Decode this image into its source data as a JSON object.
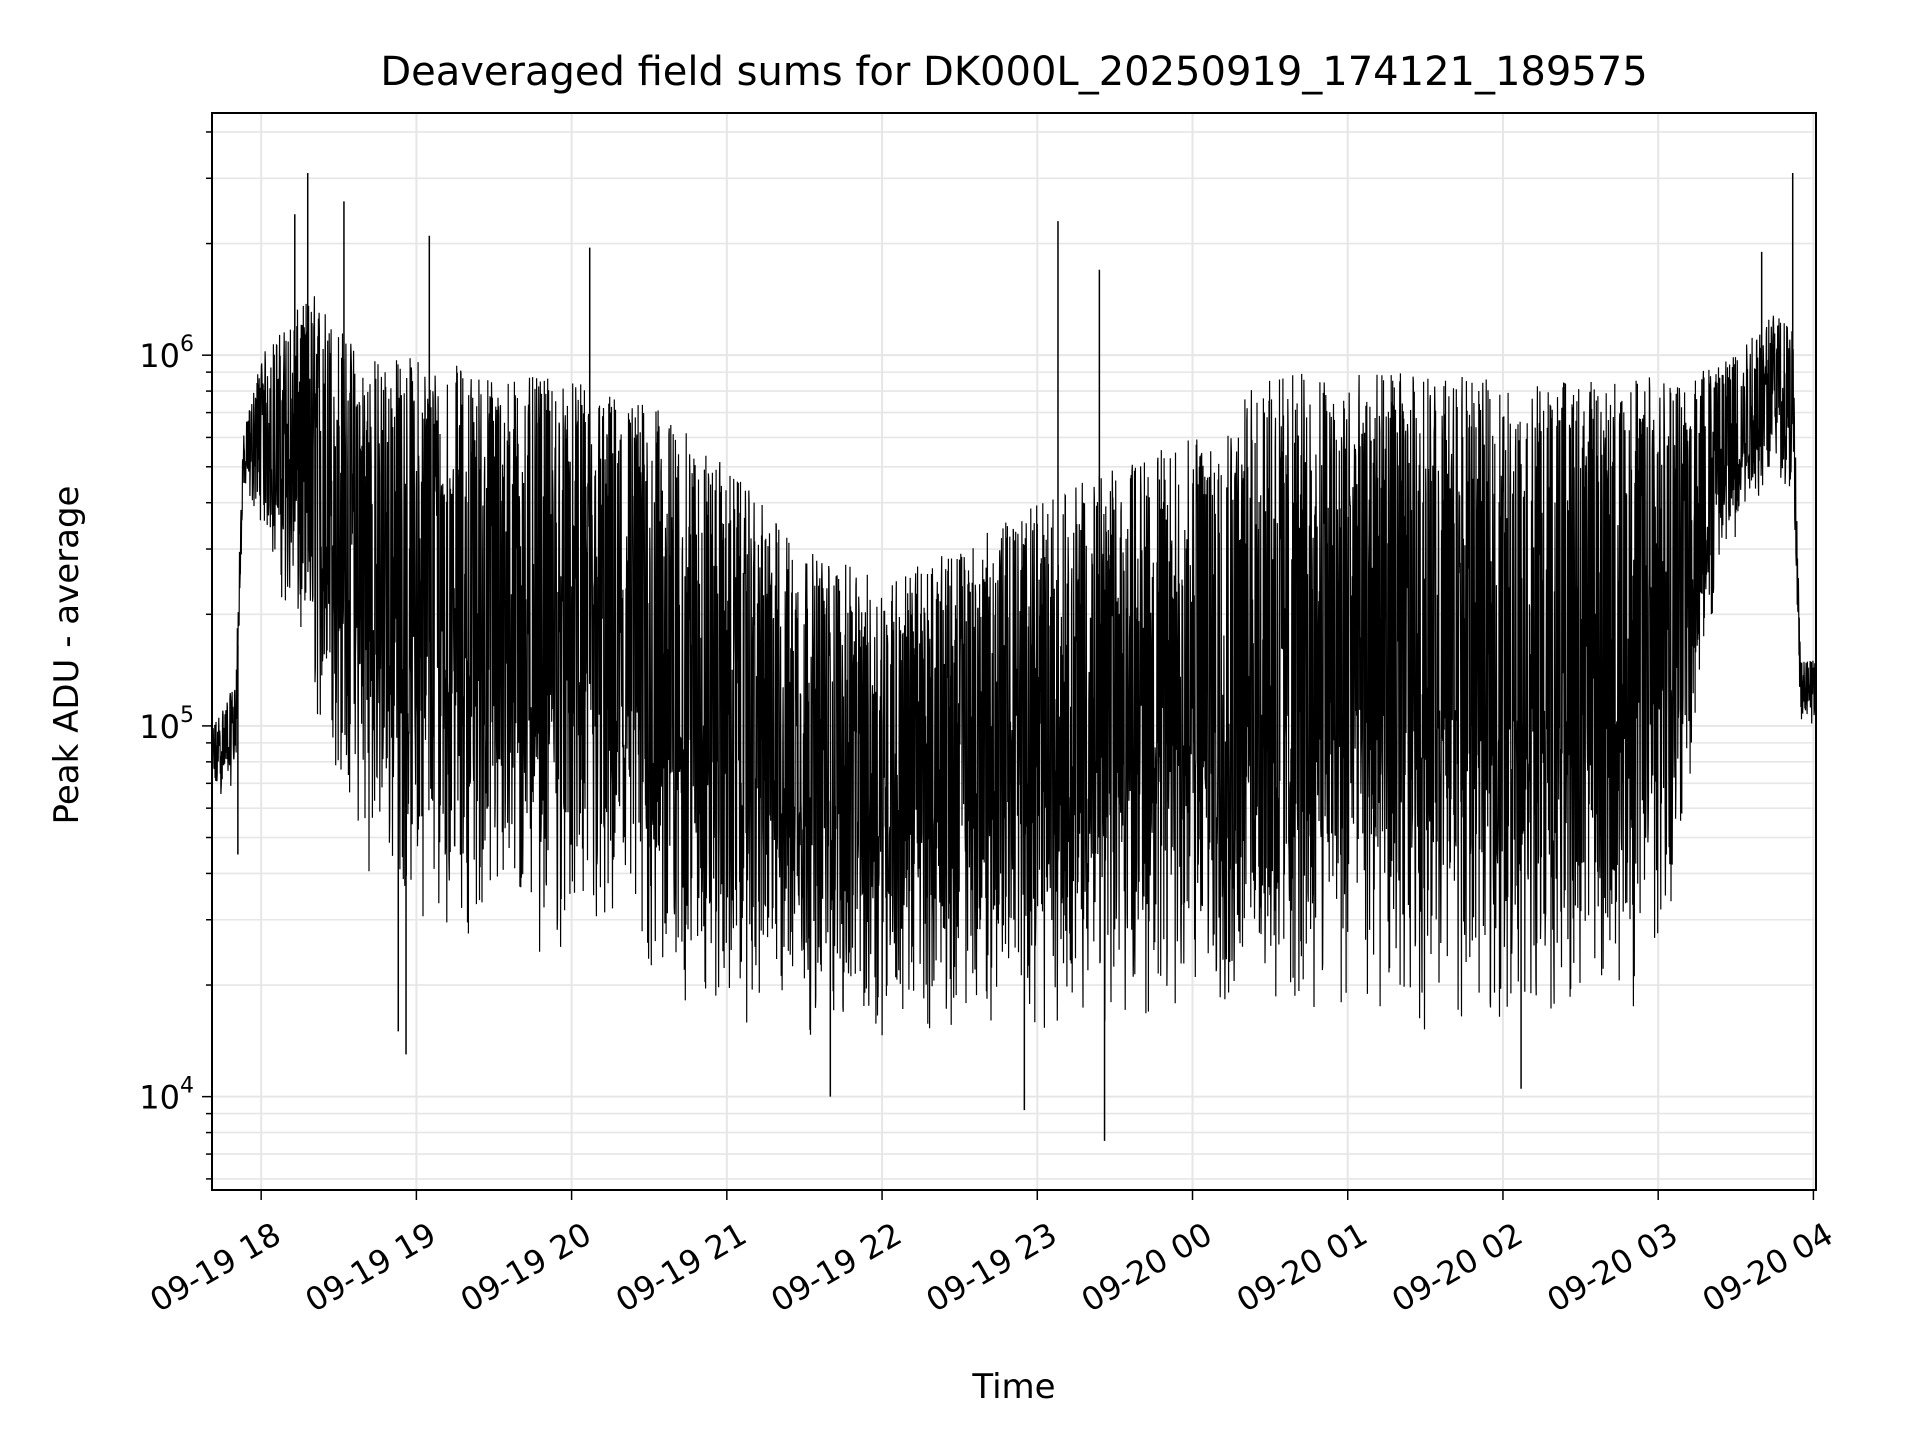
{
  "chart_data": {
    "type": "line",
    "title": "Deaveraged field sums for DK000L_20250919_174121_189575",
    "xlabel": "Time",
    "ylabel": "Peak ADU - average",
    "yscale": "log",
    "ylim": [
      5600,
      4500000
    ],
    "xlim": [
      "2025-09-19 17:41",
      "2025-09-20 04:01"
    ],
    "grid": true,
    "line_color": "#000000",
    "grid_color": "#e6e6e6",
    "x_ticks": [
      {
        "label": "09-19 18",
        "t": "2025-09-19 18:00"
      },
      {
        "label": "09-19 19",
        "t": "2025-09-19 19:00"
      },
      {
        "label": "09-19 20",
        "t": "2025-09-19 20:00"
      },
      {
        "label": "09-19 21",
        "t": "2025-09-19 21:00"
      },
      {
        "label": "09-19 22",
        "t": "2025-09-19 22:00"
      },
      {
        "label": "09-19 23",
        "t": "2025-09-19 23:00"
      },
      {
        "label": "09-20 00",
        "t": "2025-09-20 00:00"
      },
      {
        "label": "09-20 01",
        "t": "2025-09-20 01:00"
      },
      {
        "label": "09-20 02",
        "t": "2025-09-20 02:00"
      },
      {
        "label": "09-20 03",
        "t": "2025-09-20 03:00"
      },
      {
        "label": "09-20 04",
        "t": "2025-09-20 04:00"
      }
    ],
    "y_ticks": [
      {
        "base": "10",
        "exp": "4",
        "value": 10000
      },
      {
        "base": "10",
        "exp": "5",
        "value": 100000
      },
      {
        "base": "10",
        "exp": "6",
        "value": 1000000
      }
    ],
    "series": [
      {
        "envelope": {
          "t": [
            "2025-09-19 17:41",
            "2025-09-19 17:50",
            "2025-09-19 17:53",
            "2025-09-19 18:00",
            "2025-09-19 18:20",
            "2025-09-19 18:40",
            "2025-09-19 19:00",
            "2025-09-19 19:30",
            "2025-09-19 20:00",
            "2025-09-19 20:30",
            "2025-09-19 21:00",
            "2025-09-19 21:30",
            "2025-09-19 22:00",
            "2025-09-19 22:30",
            "2025-09-19 23:00",
            "2025-09-19 23:30",
            "2025-09-20 00:00",
            "2025-09-20 00:30",
            "2025-09-20 01:00",
            "2025-09-20 01:30",
            "2025-09-20 02:00",
            "2025-09-20 02:30",
            "2025-09-20 03:00",
            "2025-09-20 03:10",
            "2025-09-20 03:25",
            "2025-09-20 03:45",
            "2025-09-20 03:52",
            "2025-09-20 03:55",
            "2025-09-20 04:01"
          ],
          "low": [
            60000,
            70000,
            400000,
            350000,
            100000,
            40000,
            30000,
            25000,
            22000,
            16000,
            15000,
            14000,
            14000,
            15000,
            15000,
            15000,
            15000,
            14000,
            15000,
            14000,
            15000,
            15000,
            18000,
            50000,
            250000,
            500000,
            400000,
            100000,
            100000
          ],
          "high": [
            100000,
            130000,
            600000,
            1000000,
            1500000,
            1000000,
            1000000,
            900000,
            850000,
            750000,
            500000,
            300000,
            250000,
            300000,
            400000,
            500000,
            600000,
            900000,
            900000,
            900000,
            850000,
            850000,
            900000,
            900000,
            1000000,
            1300000,
            1200000,
            150000,
            150000
          ]
        },
        "spikes": [
          {
            "t": "2025-09-19 17:51",
            "value": 45000
          },
          {
            "t": "2025-09-19 18:18",
            "value": 3100000
          },
          {
            "t": "2025-09-19 18:13",
            "value": 2400000
          },
          {
            "t": "2025-09-19 18:32",
            "value": 2600000
          },
          {
            "t": "2025-09-19 18:56",
            "value": 13000
          },
          {
            "t": "2025-09-19 18:53",
            "value": 15000
          },
          {
            "t": "2025-09-19 19:05",
            "value": 2100000
          },
          {
            "t": "2025-09-19 20:07",
            "value": 1950000
          },
          {
            "t": "2025-09-19 21:40",
            "value": 10000
          },
          {
            "t": "2025-09-19 22:55",
            "value": 9200
          },
          {
            "t": "2025-09-19 23:08",
            "value": 2300000
          },
          {
            "t": "2025-09-19 23:24",
            "value": 1700000
          },
          {
            "t": "2025-09-19 23:26",
            "value": 7600
          },
          {
            "t": "2025-09-20 02:07",
            "value": 10500
          },
          {
            "t": "2025-09-20 03:52",
            "value": 3100000
          },
          {
            "t": "2025-09-20 03:40",
            "value": 1900000
          }
        ]
      }
    ]
  }
}
